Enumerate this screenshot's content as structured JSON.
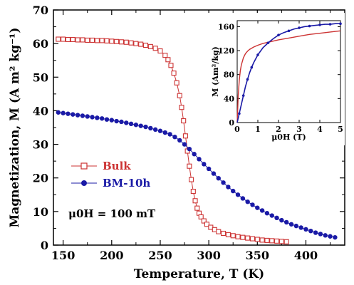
{
  "chart_data": [
    {
      "type": "scatter",
      "xlabel": "Temperature, T (K)",
      "ylabel": "Magnetization, M (A m² kg⁻¹)",
      "xlim": [
        140,
        440
      ],
      "ylim": [
        0,
        70
      ],
      "x_ticks": [
        "150",
        "200",
        "250",
        "300",
        "350",
        "400"
      ],
      "y_ticks": [
        "0",
        "10",
        "20",
        "30",
        "40",
        "50",
        "60",
        "70"
      ],
      "legend_position": "middle-left",
      "annotation": "μ0H = 100 mT",
      "series": [
        {
          "name": "Bulk",
          "color": "#cc3333",
          "marker": "open-square",
          "x": [
            145,
            150,
            155,
            160,
            165,
            170,
            175,
            180,
            185,
            190,
            195,
            200,
            205,
            210,
            215,
            220,
            225,
            230,
            235,
            240,
            245,
            250,
            255,
            258,
            261,
            264,
            267,
            270,
            272,
            274,
            276,
            278,
            280,
            282,
            284,
            286,
            288,
            290,
            292,
            295,
            298,
            302,
            306,
            310,
            315,
            320,
            325,
            330,
            335,
            340,
            345,
            350,
            355,
            360,
            365,
            370,
            375,
            380
          ],
          "y": [
            61.3,
            61.3,
            61.2,
            61.2,
            61.1,
            61.1,
            61.0,
            61.0,
            60.9,
            60.9,
            60.8,
            60.7,
            60.6,
            60.5,
            60.4,
            60.2,
            60.0,
            59.8,
            59.5,
            59.1,
            58.6,
            57.8,
            56.5,
            55.2,
            53.5,
            51.2,
            48.3,
            44.5,
            41.0,
            37.0,
            32.5,
            28.0,
            23.5,
            19.5,
            16.0,
            13.2,
            11.0,
            9.5,
            8.4,
            7.2,
            6.2,
            5.3,
            4.6,
            4.0,
            3.5,
            3.1,
            2.8,
            2.5,
            2.3,
            2.1,
            1.9,
            1.7,
            1.5,
            1.4,
            1.3,
            1.2,
            1.1,
            1.0
          ]
        },
        {
          "name": "BM-10h",
          "color": "#1a1aa6",
          "marker": "filled-circle",
          "x": [
            145,
            150,
            155,
            160,
            165,
            170,
            175,
            180,
            185,
            190,
            195,
            200,
            205,
            210,
            215,
            220,
            225,
            230,
            235,
            240,
            245,
            250,
            255,
            260,
            265,
            270,
            275,
            280,
            285,
            290,
            295,
            300,
            305,
            310,
            315,
            320,
            325,
            330,
            335,
            340,
            345,
            350,
            355,
            360,
            365,
            370,
            375,
            380,
            385,
            390,
            395,
            400,
            405,
            410,
            415,
            420,
            425,
            430
          ],
          "y": [
            39.5,
            39.3,
            39.1,
            38.9,
            38.7,
            38.5,
            38.3,
            38.1,
            37.9,
            37.7,
            37.4,
            37.2,
            36.9,
            36.7,
            36.4,
            36.1,
            35.8,
            35.5,
            35.2,
            34.8,
            34.4,
            34.0,
            33.5,
            33.0,
            32.2,
            31.2,
            30.0,
            28.6,
            27.1,
            25.6,
            24.1,
            22.7,
            21.3,
            19.9,
            18.6,
            17.3,
            16.1,
            15.0,
            13.9,
            12.9,
            12.0,
            11.1,
            10.3,
            9.5,
            8.8,
            8.1,
            7.4,
            6.8,
            6.2,
            5.7,
            5.2,
            4.7,
            4.2,
            3.7,
            3.3,
            2.9,
            2.6,
            2.3
          ]
        }
      ]
    },
    {
      "type": "line",
      "xlabel": "μ0H (T)",
      "ylabel": "M (Am²/kg)",
      "xlim": [
        0,
        5
      ],
      "ylim": [
        0,
        170
      ],
      "x_ticks": [
        "0",
        "1",
        "2",
        "3",
        "4",
        "5"
      ],
      "y_ticks": [
        "0",
        "40",
        "80",
        "120",
        "160"
      ],
      "series": [
        {
          "name": "Bulk",
          "color": "#cc3333",
          "x": [
            0,
            0.05,
            0.1,
            0.15,
            0.2,
            0.3,
            0.4,
            0.5,
            0.6,
            0.8,
            1.0,
            1.25,
            1.5,
            2.0,
            2.5,
            3.0,
            3.5,
            4.0,
            4.5,
            5.0
          ],
          "y": [
            0,
            45,
            70,
            86,
            96,
            108,
            115,
            119,
            122,
            126,
            129,
            132,
            134,
            138,
            141,
            144,
            147,
            149,
            151,
            153
          ]
        },
        {
          "name": "BM-10h",
          "color": "#1a1aa6",
          "x": [
            0,
            0.1,
            0.2,
            0.3,
            0.4,
            0.5,
            0.6,
            0.7,
            0.8,
            1.0,
            1.25,
            1.5,
            1.75,
            2.0,
            2.25,
            2.5,
            2.75,
            3.0,
            3.25,
            3.5,
            3.75,
            4.0,
            4.25,
            4.5,
            4.75,
            5.0
          ],
          "y": [
            0,
            15,
            30,
            45,
            60,
            72,
            83,
            92,
            100,
            113,
            125,
            133,
            140,
            146,
            150,
            153,
            156,
            158,
            160,
            161,
            162,
            163,
            164,
            164,
            165,
            165
          ]
        }
      ]
    }
  ]
}
